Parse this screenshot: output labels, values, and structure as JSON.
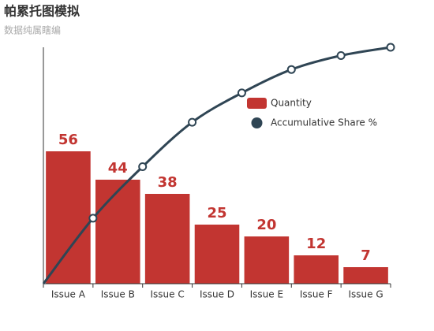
{
  "chart_data": {
    "type": "pareto",
    "title": "帕累托图模拟",
    "subtitle": "数据纯属瞎编",
    "categories": [
      "Issue A",
      "Issue B",
      "Issue C",
      "Issue D",
      "Issue E",
      "Issue F",
      "Issue G"
    ],
    "series": [
      {
        "name": "Quantity",
        "color": "#c23531",
        "values": [
          56,
          44,
          38,
          25,
          20,
          12,
          7
        ]
      },
      {
        "name": "Accumulative Share %",
        "color": "#2f4554",
        "axis": "y2",
        "values": [
          27.7,
          49.5,
          68.3,
          80.7,
          90.6,
          96.5,
          100
        ]
      }
    ],
    "ylim": [
      0,
      100
    ],
    "y2lim": [
      0,
      100
    ],
    "legend": "upper-center"
  }
}
